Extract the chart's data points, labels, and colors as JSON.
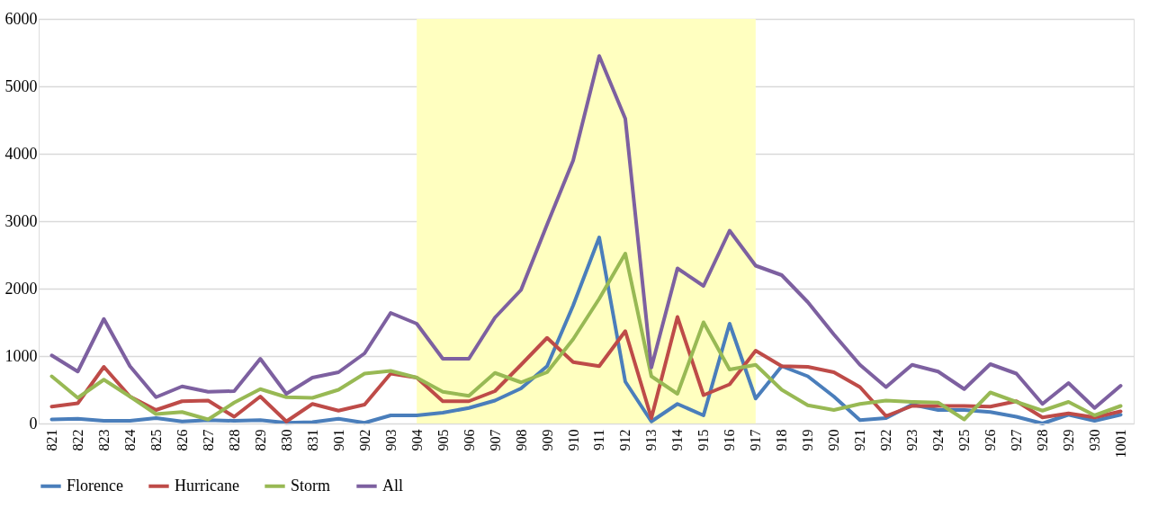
{
  "chart_data": {
    "type": "line",
    "categories": [
      "821",
      "822",
      "823",
      "824",
      "825",
      "826",
      "827",
      "828",
      "829",
      "830",
      "831",
      "901",
      "902",
      "903",
      "904",
      "905",
      "906",
      "907",
      "908",
      "909",
      "910",
      "911",
      "912",
      "913",
      "914",
      "915",
      "916",
      "917",
      "918",
      "919",
      "920",
      "921",
      "922",
      "923",
      "924",
      "925",
      "926",
      "927",
      "928",
      "929",
      "930",
      "1001"
    ],
    "series": [
      {
        "name": "Florence",
        "color": "#4a7ebb",
        "values": [
          60,
          70,
          40,
          40,
          80,
          30,
          50,
          40,
          50,
          10,
          20,
          70,
          10,
          120,
          120,
          160,
          230,
          340,
          520,
          850,
          1750,
          2760,
          620,
          30,
          290,
          120,
          1480,
          370,
          850,
          700,
          400,
          50,
          80,
          280,
          200,
          200,
          170,
          100,
          0,
          130,
          40,
          130
        ]
      },
      {
        "name": "Hurricane",
        "color": "#be4b48",
        "values": [
          250,
          300,
          840,
          400,
          200,
          330,
          340,
          100,
          400,
          30,
          290,
          190,
          280,
          740,
          680,
          330,
          330,
          480,
          870,
          1270,
          910,
          850,
          1370,
          80,
          1580,
          420,
          580,
          1080,
          850,
          840,
          760,
          540,
          110,
          260,
          260,
          260,
          250,
          330,
          90,
          150,
          90,
          180
        ]
      },
      {
        "name": "Storm",
        "color": "#98b954",
        "values": [
          700,
          380,
          650,
          400,
          140,
          170,
          60,
          310,
          510,
          390,
          380,
          500,
          740,
          780,
          680,
          470,
          410,
          750,
          610,
          760,
          1250,
          1850,
          2520,
          700,
          440,
          1500,
          800,
          870,
          500,
          270,
          200,
          290,
          340,
          320,
          310,
          60,
          460,
          320,
          190,
          320,
          120,
          260
        ]
      },
      {
        "name": "All",
        "color": "#7d60a0",
        "values": [
          1010,
          770,
          1550,
          850,
          390,
          550,
          470,
          480,
          960,
          440,
          680,
          760,
          1040,
          1640,
          1480,
          960,
          960,
          1570,
          1980,
          2950,
          3900,
          5450,
          4520,
          830,
          2300,
          2040,
          2860,
          2340,
          2200,
          1800,
          1320,
          870,
          540,
          870,
          770,
          510,
          880,
          740,
          290,
          600,
          230,
          560
        ]
      }
    ],
    "ylim": [
      0,
      6000
    ],
    "yticks": [
      0,
      1000,
      2000,
      3000,
      4000,
      5000,
      6000
    ],
    "bands": [
      {
        "axis": "x",
        "from": "904",
        "to": "917",
        "color": "#ffffc0"
      }
    ],
    "grid": "y",
    "legend": "bottom",
    "line_style": "solid",
    "marker": "none"
  }
}
